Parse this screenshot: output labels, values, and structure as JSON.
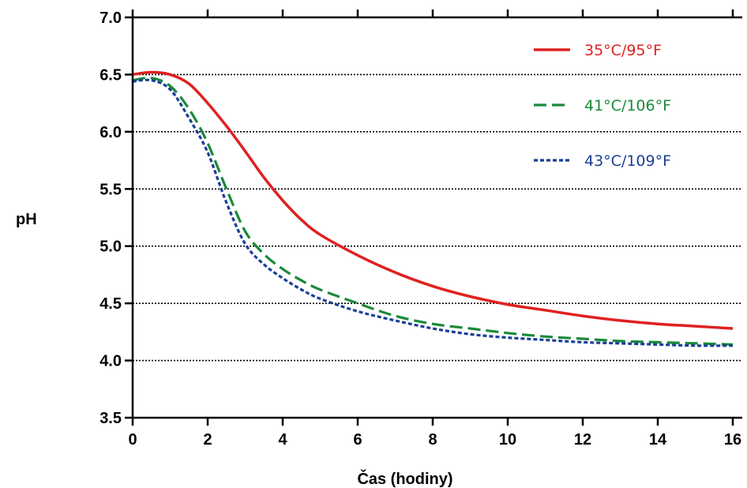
{
  "chart_data": {
    "type": "line",
    "title": "",
    "xlabel": "Čas (hodiny)",
    "ylabel": "pH",
    "xlim": [
      0,
      16
    ],
    "ylim": [
      3.5,
      7.0
    ],
    "xticks": [
      0,
      2,
      4,
      6,
      8,
      10,
      12,
      14,
      16
    ],
    "xtick_labels": [
      "0",
      "2",
      "4",
      "6",
      "8",
      "10",
      "12",
      "14",
      "16"
    ],
    "yticks": [
      3.5,
      4.0,
      4.5,
      5.0,
      5.5,
      6.0,
      6.5,
      7.0
    ],
    "ytick_labels": [
      "3.5",
      "4.0",
      "4.5",
      "5.0",
      "5.5",
      "6.0",
      "6.5",
      "7.0"
    ],
    "grid": "horizontal dotted",
    "legend_position": "top-right",
    "series": [
      {
        "name": "35°C/95°F",
        "color": "#e02020",
        "dash": "solid",
        "x": [
          0,
          0.5,
          1,
          1.5,
          2,
          2.5,
          3,
          3.5,
          4,
          4.5,
          5,
          6,
          7,
          8,
          9,
          10,
          11,
          12,
          13,
          14,
          15,
          16
        ],
        "y": [
          6.5,
          6.52,
          6.5,
          6.42,
          6.25,
          6.05,
          5.83,
          5.6,
          5.4,
          5.23,
          5.1,
          4.92,
          4.77,
          4.65,
          4.56,
          4.49,
          4.44,
          4.39,
          4.35,
          4.32,
          4.3,
          4.28
        ]
      },
      {
        "name": "41°C/106°F",
        "color": "#1a8a3a",
        "dash": "dashed",
        "x": [
          0,
          0.5,
          1,
          1.5,
          2,
          2.5,
          3,
          3.5,
          4,
          4.5,
          5,
          6,
          7,
          8,
          9,
          10,
          11,
          12,
          13,
          14,
          15,
          16
        ],
        "y": [
          6.45,
          6.47,
          6.4,
          6.2,
          5.9,
          5.5,
          5.13,
          4.93,
          4.8,
          4.7,
          4.62,
          4.5,
          4.39,
          4.32,
          4.28,
          4.24,
          4.21,
          4.19,
          4.17,
          4.16,
          4.15,
          4.14
        ]
      },
      {
        "name": "43°C/109°F",
        "color": "#1a3f96",
        "dash": "dotted",
        "x": [
          0,
          0.5,
          1,
          1.5,
          2,
          2.5,
          3,
          3.5,
          4,
          4.5,
          5,
          6,
          7,
          8,
          9,
          10,
          11,
          12,
          13,
          14,
          15,
          16
        ],
        "y": [
          6.44,
          6.45,
          6.37,
          6.12,
          5.82,
          5.38,
          5.02,
          4.84,
          4.72,
          4.62,
          4.54,
          4.43,
          4.35,
          4.28,
          4.23,
          4.2,
          4.18,
          4.16,
          4.15,
          4.14,
          4.13,
          4.13
        ]
      }
    ]
  }
}
